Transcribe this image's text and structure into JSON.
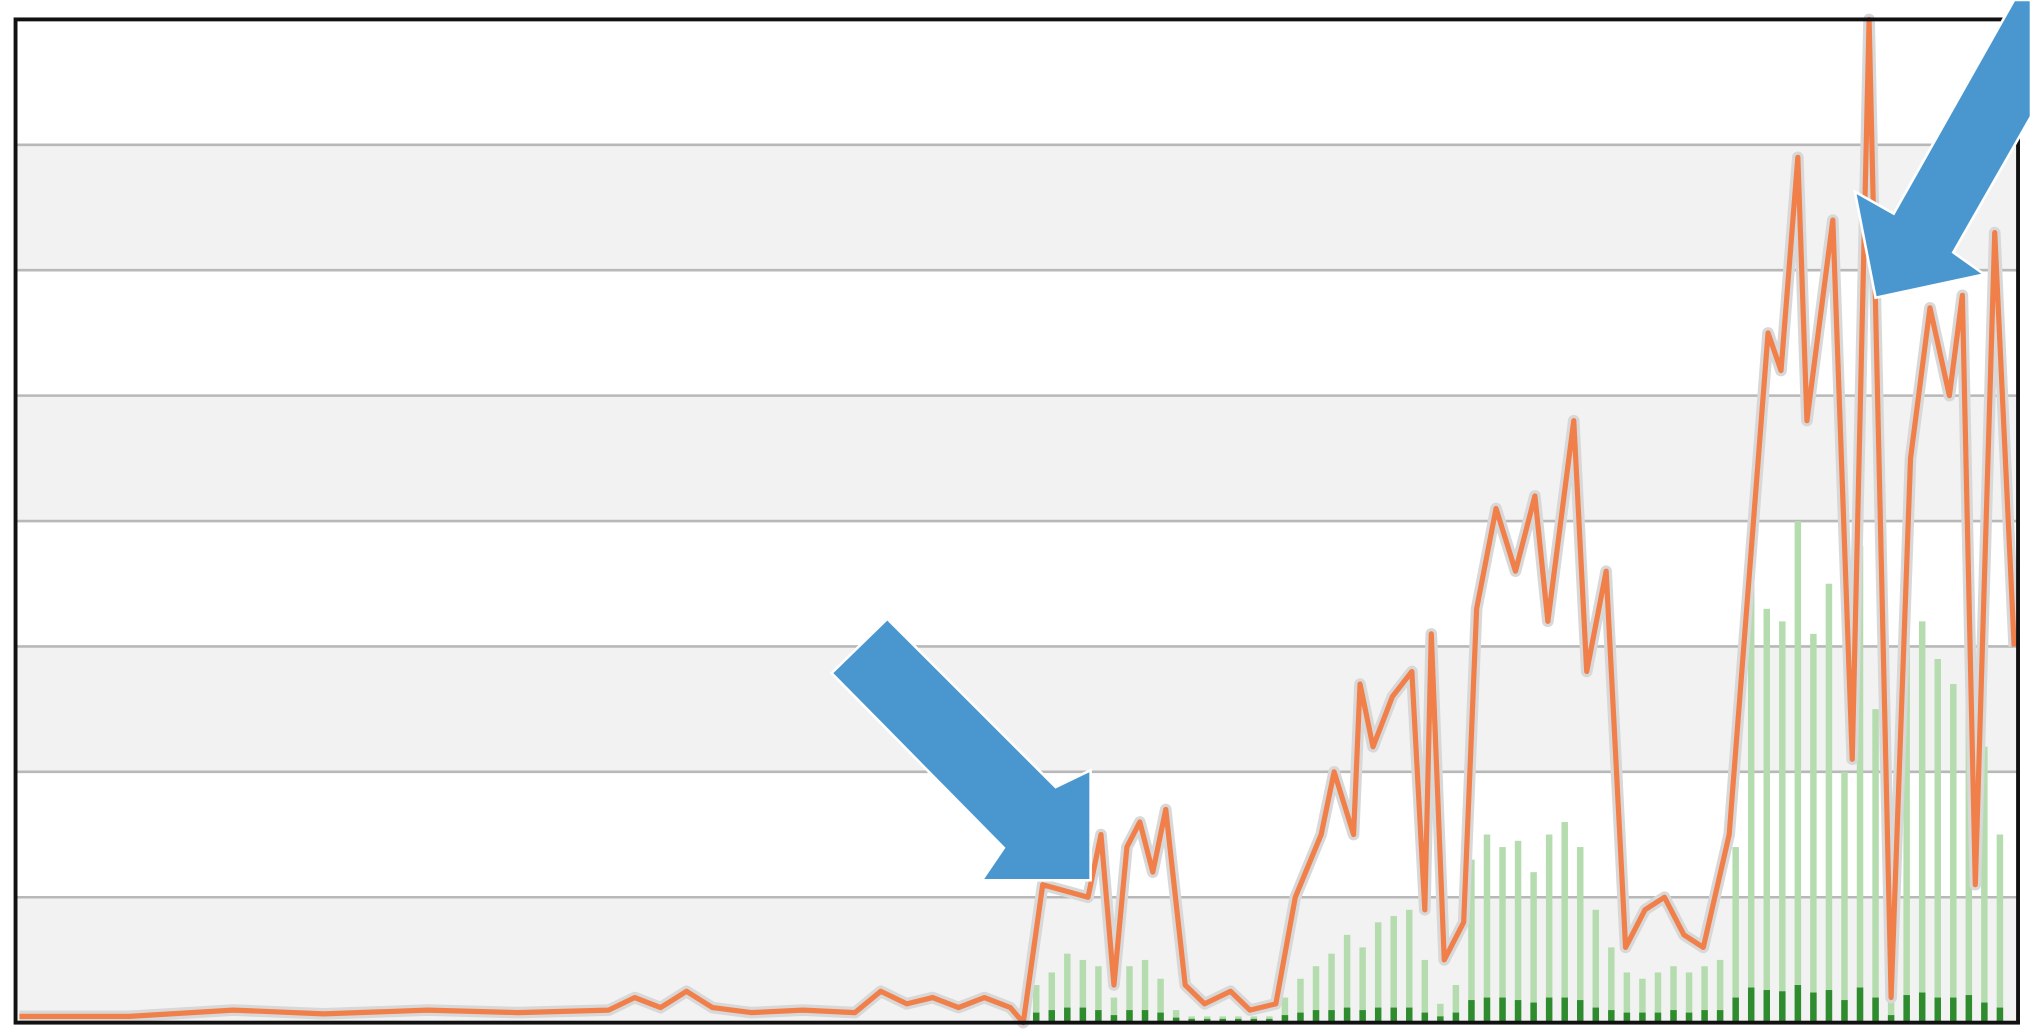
{
  "chart_data": {
    "type": "combo",
    "xlim": [
      12,
      1558
    ],
    "ylim": [
      0,
      8
    ],
    "yticks": [
      0,
      1,
      2,
      3,
      4,
      5,
      6,
      7,
      8
    ],
    "grid": true,
    "band_colors": [
      "#f2f2f2",
      "#ffffff"
    ],
    "series": [
      {
        "kind": "bar",
        "color": "#b5dcae",
        "x": [
          800,
          812,
          824,
          836,
          848,
          860,
          872,
          884,
          896,
          908,
          920,
          932,
          944,
          956,
          968,
          980,
          992,
          1004,
          1016,
          1028,
          1040,
          1052,
          1064,
          1076,
          1088,
          1100,
          1112,
          1124,
          1136,
          1148,
          1160,
          1172,
          1184,
          1196,
          1208,
          1220,
          1232,
          1244,
          1256,
          1268,
          1280,
          1292,
          1304,
          1316,
          1328,
          1340,
          1352,
          1364,
          1376,
          1388,
          1400,
          1412,
          1424,
          1436,
          1448,
          1460,
          1472,
          1484,
          1496,
          1508,
          1520,
          1532,
          1544
        ],
        "values": [
          0.3,
          0.4,
          0.55,
          0.5,
          0.45,
          0.2,
          0.45,
          0.5,
          0.35,
          0.1,
          0.05,
          0.05,
          0.05,
          0.05,
          0.05,
          0.05,
          0.2,
          0.35,
          0.45,
          0.55,
          0.7,
          0.6,
          0.8,
          0.85,
          0.9,
          0.5,
          0.15,
          0.3,
          1.3,
          1.5,
          1.4,
          1.45,
          1.2,
          1.5,
          1.6,
          1.4,
          0.9,
          0.6,
          0.4,
          0.35,
          0.4,
          0.45,
          0.4,
          0.45,
          0.5,
          1.4,
          3.5,
          3.3,
          3.2,
          4.0,
          3.1,
          3.5,
          2.0,
          3.8,
          2.5,
          0.5,
          3.0,
          3.2,
          2.9,
          2.7,
          3.3,
          2.2,
          1.5
        ]
      },
      {
        "kind": "bar",
        "color": "#2e8b2e",
        "x": [
          800,
          812,
          824,
          836,
          848,
          860,
          872,
          884,
          896,
          908,
          920,
          932,
          944,
          956,
          968,
          980,
          992,
          1004,
          1016,
          1028,
          1040,
          1052,
          1064,
          1076,
          1088,
          1100,
          1112,
          1124,
          1136,
          1148,
          1160,
          1172,
          1184,
          1196,
          1208,
          1220,
          1232,
          1244,
          1256,
          1268,
          1280,
          1292,
          1304,
          1316,
          1328,
          1340,
          1352,
          1364,
          1376,
          1388,
          1400,
          1412,
          1424,
          1436,
          1448,
          1460,
          1472,
          1484,
          1496,
          1508,
          1520,
          1532,
          1544
        ],
        "values": [
          0.08,
          0.1,
          0.12,
          0.12,
          0.1,
          0.06,
          0.1,
          0.1,
          0.08,
          0.04,
          0.03,
          0.03,
          0.03,
          0.03,
          0.03,
          0.03,
          0.06,
          0.08,
          0.1,
          0.1,
          0.12,
          0.1,
          0.12,
          0.12,
          0.12,
          0.08,
          0.05,
          0.08,
          0.18,
          0.2,
          0.2,
          0.18,
          0.16,
          0.2,
          0.2,
          0.18,
          0.12,
          0.1,
          0.08,
          0.08,
          0.08,
          0.1,
          0.08,
          0.1,
          0.1,
          0.2,
          0.28,
          0.26,
          0.25,
          0.3,
          0.24,
          0.26,
          0.18,
          0.28,
          0.2,
          0.06,
          0.22,
          0.24,
          0.2,
          0.2,
          0.22,
          0.16,
          0.12
        ]
      },
      {
        "kind": "line",
        "color": "#f07f4a",
        "x": [
          15,
          100,
          180,
          250,
          330,
          400,
          470,
          490,
          510,
          530,
          550,
          580,
          620,
          660,
          680,
          700,
          720,
          740,
          760,
          780,
          790,
          805,
          840,
          850,
          860,
          870,
          880,
          890,
          900,
          915,
          930,
          950,
          965,
          985,
          1000,
          1020,
          1030,
          1045,
          1050,
          1060,
          1075,
          1090,
          1100,
          1105,
          1115,
          1130,
          1140,
          1155,
          1170,
          1185,
          1195,
          1215,
          1225,
          1240,
          1255,
          1270,
          1285,
          1300,
          1315,
          1335,
          1350,
          1365,
          1375,
          1388,
          1395,
          1415,
          1430,
          1443,
          1460,
          1475,
          1490,
          1505,
          1515,
          1525,
          1540,
          1555
        ],
        "values": [
          0.05,
          0.05,
          0.1,
          0.07,
          0.1,
          0.08,
          0.1,
          0.2,
          0.12,
          0.25,
          0.12,
          0.08,
          0.1,
          0.08,
          0.25,
          0.15,
          0.2,
          0.12,
          0.2,
          0.12,
          0,
          1.1,
          1.0,
          1.5,
          0.3,
          1.4,
          1.6,
          1.2,
          1.7,
          0.3,
          0.15,
          0.25,
          0.1,
          0.15,
          1.0,
          1.5,
          2.0,
          1.5,
          2.7,
          2.2,
          2.6,
          2.8,
          0.9,
          3.1,
          0.5,
          0.8,
          3.3,
          4.1,
          3.6,
          4.2,
          3.2,
          4.8,
          2.8,
          3.6,
          0.6,
          0.9,
          1.0,
          0.7,
          0.6,
          1.5,
          3.5,
          5.5,
          5.2,
          6.9,
          4.8,
          6.4,
          2.1,
          8.0,
          0.2,
          4.5,
          5.7,
          5.0,
          5.8,
          1.1,
          6.3,
          3.0
        ]
      }
    ]
  }
}
